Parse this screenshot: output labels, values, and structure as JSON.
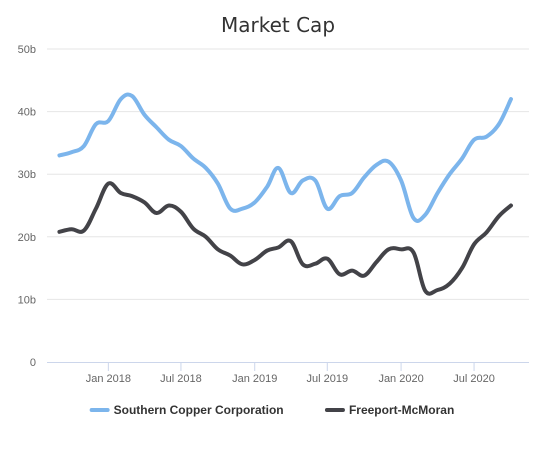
{
  "chart_data": {
    "type": "line",
    "title": "Market Cap",
    "xlabel": "",
    "ylabel": "",
    "x_range": [
      "2017-08-01",
      "2020-11-15"
    ],
    "ylim": [
      0,
      50
    ],
    "y_ticks": [
      {
        "value": 0,
        "label": "0"
      },
      {
        "value": 10,
        "label": "10b"
      },
      {
        "value": 20,
        "label": "20b"
      },
      {
        "value": 30,
        "label": "30b"
      },
      {
        "value": 40,
        "label": "40b"
      },
      {
        "value": 50,
        "label": "50b"
      }
    ],
    "x_ticks": [
      {
        "date": "2018-01-01",
        "label": "Jan 2018"
      },
      {
        "date": "2018-07-01",
        "label": "Jul 2018"
      },
      {
        "date": "2019-01-01",
        "label": "Jan 2019"
      },
      {
        "date": "2019-07-01",
        "label": "Jul 2019"
      },
      {
        "date": "2020-01-01",
        "label": "Jan 2020"
      },
      {
        "date": "2020-07-01",
        "label": "Jul 2020"
      }
    ],
    "grid": "horizontal",
    "legend_position": "bottom",
    "series": [
      {
        "name": "Southern Copper Corporation",
        "color": "#7cb5ec",
        "points": [
          [
            "2017-09-01",
            33.0
          ],
          [
            "2017-10-01",
            33.5
          ],
          [
            "2017-11-01",
            34.5
          ],
          [
            "2017-12-01",
            38.0
          ],
          [
            "2018-01-01",
            38.5
          ],
          [
            "2018-02-01",
            42.0
          ],
          [
            "2018-03-01",
            42.5
          ],
          [
            "2018-04-01",
            39.5
          ],
          [
            "2018-05-01",
            37.5
          ],
          [
            "2018-06-01",
            35.5
          ],
          [
            "2018-07-01",
            34.5
          ],
          [
            "2018-08-01",
            32.5
          ],
          [
            "2018-09-01",
            31.0
          ],
          [
            "2018-10-01",
            28.5
          ],
          [
            "2018-11-01",
            24.5
          ],
          [
            "2018-12-01",
            24.5
          ],
          [
            "2019-01-01",
            25.5
          ],
          [
            "2019-02-01",
            28.0
          ],
          [
            "2019-03-01",
            31.0
          ],
          [
            "2019-04-01",
            27.0
          ],
          [
            "2019-05-01",
            29.0
          ],
          [
            "2019-06-01",
            29.0
          ],
          [
            "2019-07-01",
            24.5
          ],
          [
            "2019-08-01",
            26.5
          ],
          [
            "2019-09-01",
            27.0
          ],
          [
            "2019-10-01",
            29.5
          ],
          [
            "2019-11-01",
            31.5
          ],
          [
            "2019-12-01",
            32.0
          ],
          [
            "2020-01-01",
            29.0
          ],
          [
            "2020-02-01",
            23.0
          ],
          [
            "2020-03-01",
            23.5
          ],
          [
            "2020-04-01",
            27.0
          ],
          [
            "2020-05-01",
            30.0
          ],
          [
            "2020-06-01",
            32.5
          ],
          [
            "2020-07-01",
            35.5
          ],
          [
            "2020-08-01",
            36.0
          ],
          [
            "2020-09-01",
            38.0
          ],
          [
            "2020-10-01",
            42.0
          ]
        ]
      },
      {
        "name": "Freeport-McMoran",
        "color": "#434348",
        "points": [
          [
            "2017-09-01",
            20.8
          ],
          [
            "2017-10-01",
            21.2
          ],
          [
            "2017-11-01",
            21.0
          ],
          [
            "2017-12-01",
            24.5
          ],
          [
            "2018-01-01",
            28.5
          ],
          [
            "2018-02-01",
            27.0
          ],
          [
            "2018-03-01",
            26.5
          ],
          [
            "2018-04-01",
            25.5
          ],
          [
            "2018-05-01",
            23.8
          ],
          [
            "2018-06-01",
            25.0
          ],
          [
            "2018-07-01",
            24.0
          ],
          [
            "2018-08-01",
            21.3
          ],
          [
            "2018-09-01",
            20.0
          ],
          [
            "2018-10-01",
            18.0
          ],
          [
            "2018-11-01",
            17.0
          ],
          [
            "2018-12-01",
            15.6
          ],
          [
            "2019-01-01",
            16.3
          ],
          [
            "2019-02-01",
            17.8
          ],
          [
            "2019-03-01",
            18.3
          ],
          [
            "2019-04-01",
            19.3
          ],
          [
            "2019-05-01",
            15.6
          ],
          [
            "2019-06-01",
            15.7
          ],
          [
            "2019-07-01",
            16.5
          ],
          [
            "2019-08-01",
            14.0
          ],
          [
            "2019-09-01",
            14.6
          ],
          [
            "2019-10-01",
            13.8
          ],
          [
            "2019-11-01",
            16.0
          ],
          [
            "2019-12-01",
            18.0
          ],
          [
            "2020-01-01",
            18.0
          ],
          [
            "2020-02-01",
            17.5
          ],
          [
            "2020-03-01",
            11.4
          ],
          [
            "2020-04-01",
            11.5
          ],
          [
            "2020-05-01",
            12.5
          ],
          [
            "2020-06-01",
            15.0
          ],
          [
            "2020-07-01",
            18.8
          ],
          [
            "2020-08-01",
            20.7
          ],
          [
            "2020-09-01",
            23.3
          ],
          [
            "2020-10-01",
            25.0
          ]
        ]
      }
    ]
  }
}
